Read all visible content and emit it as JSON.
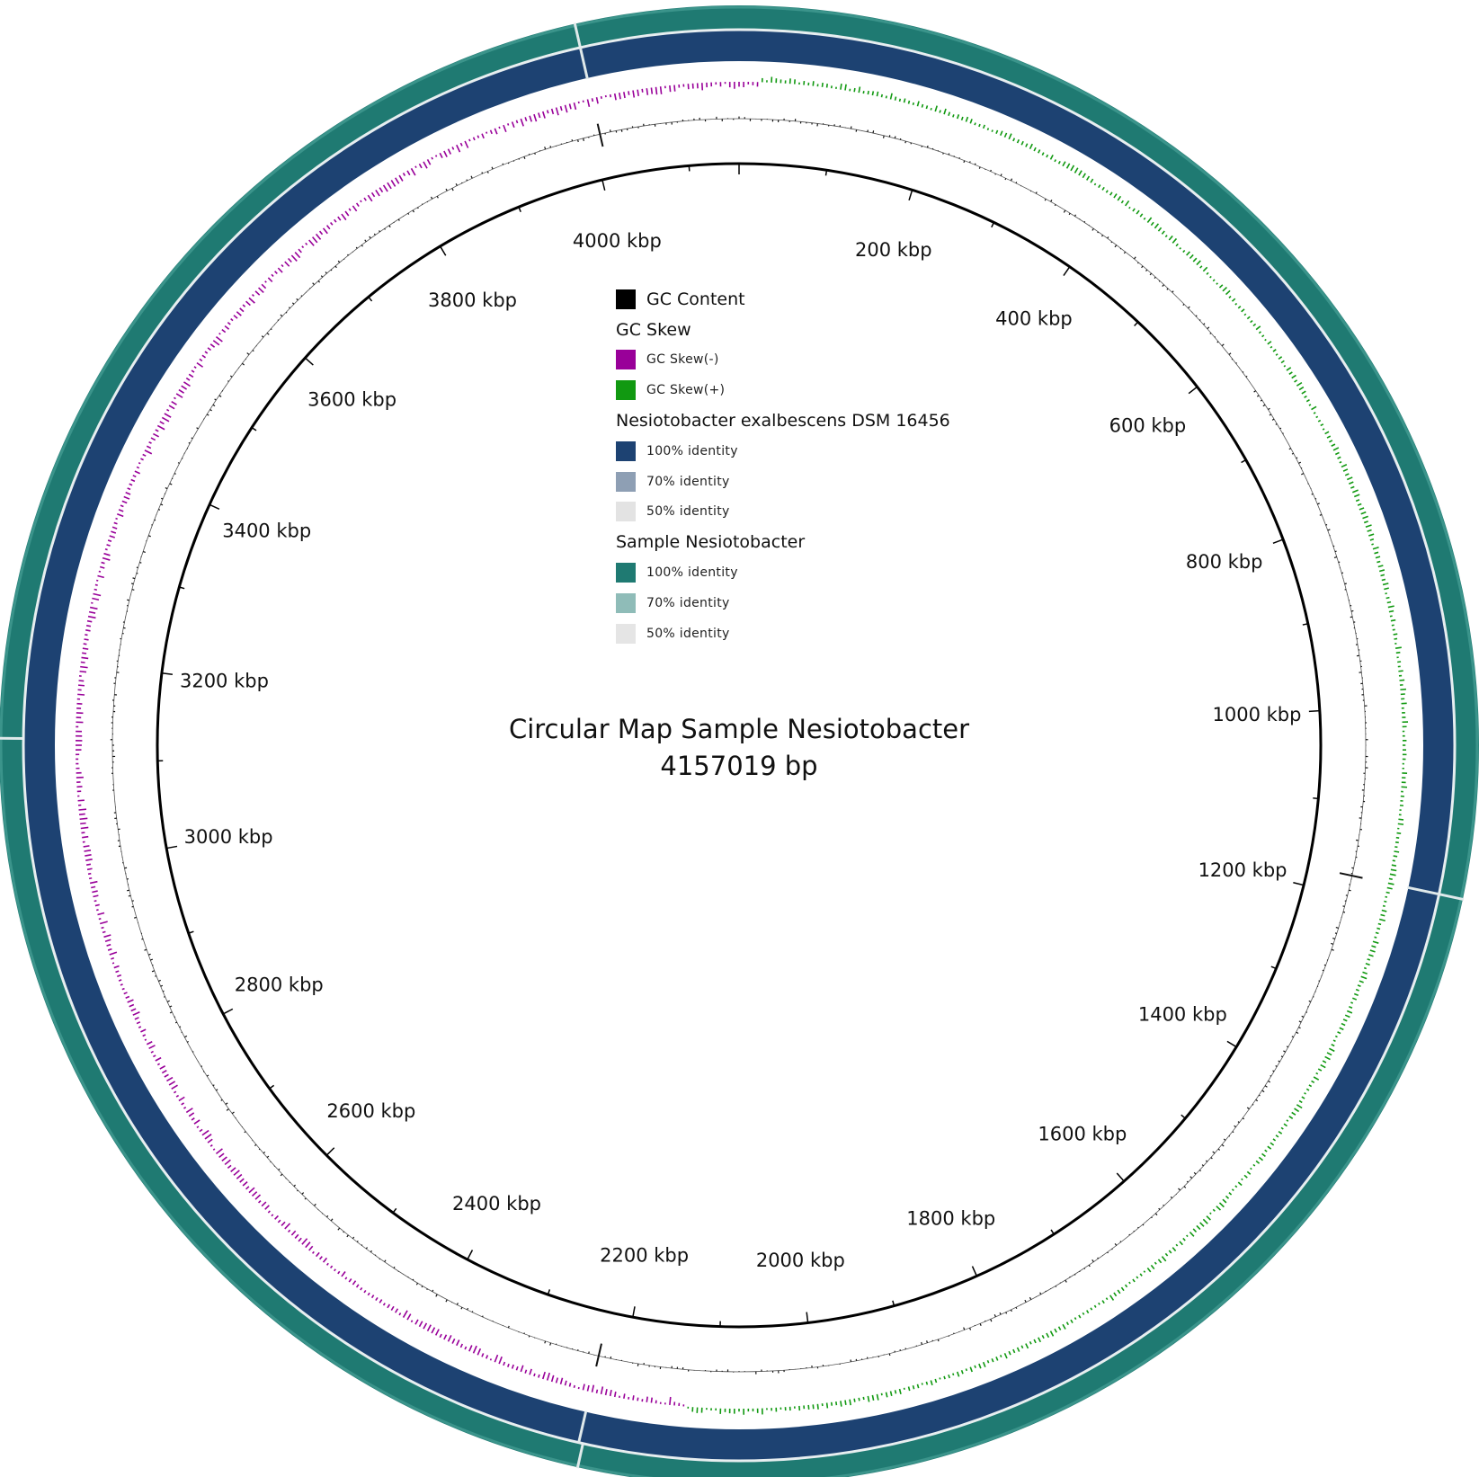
{
  "genome": {
    "title": "Circular Map Sample Nesiotobacter",
    "length_label": "4157019 bp",
    "length_bp": 4157019
  },
  "ticks": [
    {
      "label": "200 kbp",
      "pos_kbp": 200
    },
    {
      "label": "400 kbp",
      "pos_kbp": 400
    },
    {
      "label": "600 kbp",
      "pos_kbp": 600
    },
    {
      "label": "800 kbp",
      "pos_kbp": 800
    },
    {
      "label": "1000 kbp",
      "pos_kbp": 1000
    },
    {
      "label": "1200 kbp",
      "pos_kbp": 1200
    },
    {
      "label": "1400 kbp",
      "pos_kbp": 1400
    },
    {
      "label": "1600 kbp",
      "pos_kbp": 1600
    },
    {
      "label": "1800 kbp",
      "pos_kbp": 1800
    },
    {
      "label": "2000 kbp",
      "pos_kbp": 2000
    },
    {
      "label": "2200 kbp",
      "pos_kbp": 2200
    },
    {
      "label": "2400 kbp",
      "pos_kbp": 2400
    },
    {
      "label": "2600 kbp",
      "pos_kbp": 2600
    },
    {
      "label": "2800 kbp",
      "pos_kbp": 2800
    },
    {
      "label": "3000 kbp",
      "pos_kbp": 3000
    },
    {
      "label": "3200 kbp",
      "pos_kbp": 3200
    },
    {
      "label": "3400 kbp",
      "pos_kbp": 3400
    },
    {
      "label": "3600 kbp",
      "pos_kbp": 3600
    },
    {
      "label": "3800 kbp",
      "pos_kbp": 3800
    },
    {
      "label": "4000 kbp",
      "pos_kbp": 4000
    }
  ],
  "legend": {
    "gc_content": {
      "label": "GC Content",
      "color": "#000000"
    },
    "gc_skew": {
      "heading": "GC Skew",
      "minus": {
        "label": "GC Skew(-)",
        "color": "#990099"
      },
      "plus": {
        "label": "GC Skew(+)",
        "color": "#119911"
      }
    },
    "reference": {
      "heading": "Nesiotobacter exalbescens DSM 16456",
      "items": [
        {
          "label": "100% identity",
          "color": "#1d4272"
        },
        {
          "label": "70% identity",
          "color": "#8e9fb4"
        },
        {
          "label": "50% identity",
          "color": "#e3e3e3"
        }
      ]
    },
    "sample": {
      "heading": "Sample Nesiotobacter",
      "items": [
        {
          "label": "100% identity",
          "color": "#1f7a72"
        },
        {
          "label": "70% identity",
          "color": "#8fbcb8"
        },
        {
          "label": "50% identity",
          "color": "#e5e5e5"
        }
      ]
    }
  },
  "rings": {
    "sample_identity_color": "#1f7a72",
    "reference_identity_color": "#1d4272",
    "gap_color": "#dfe9ea"
  },
  "ring_gaps": {
    "reference_ring_kbp": [
      4009,
      1178,
      2228
    ],
    "sample_ring_kbp": [
      3124,
      1178,
      2224,
      4009
    ]
  }
}
